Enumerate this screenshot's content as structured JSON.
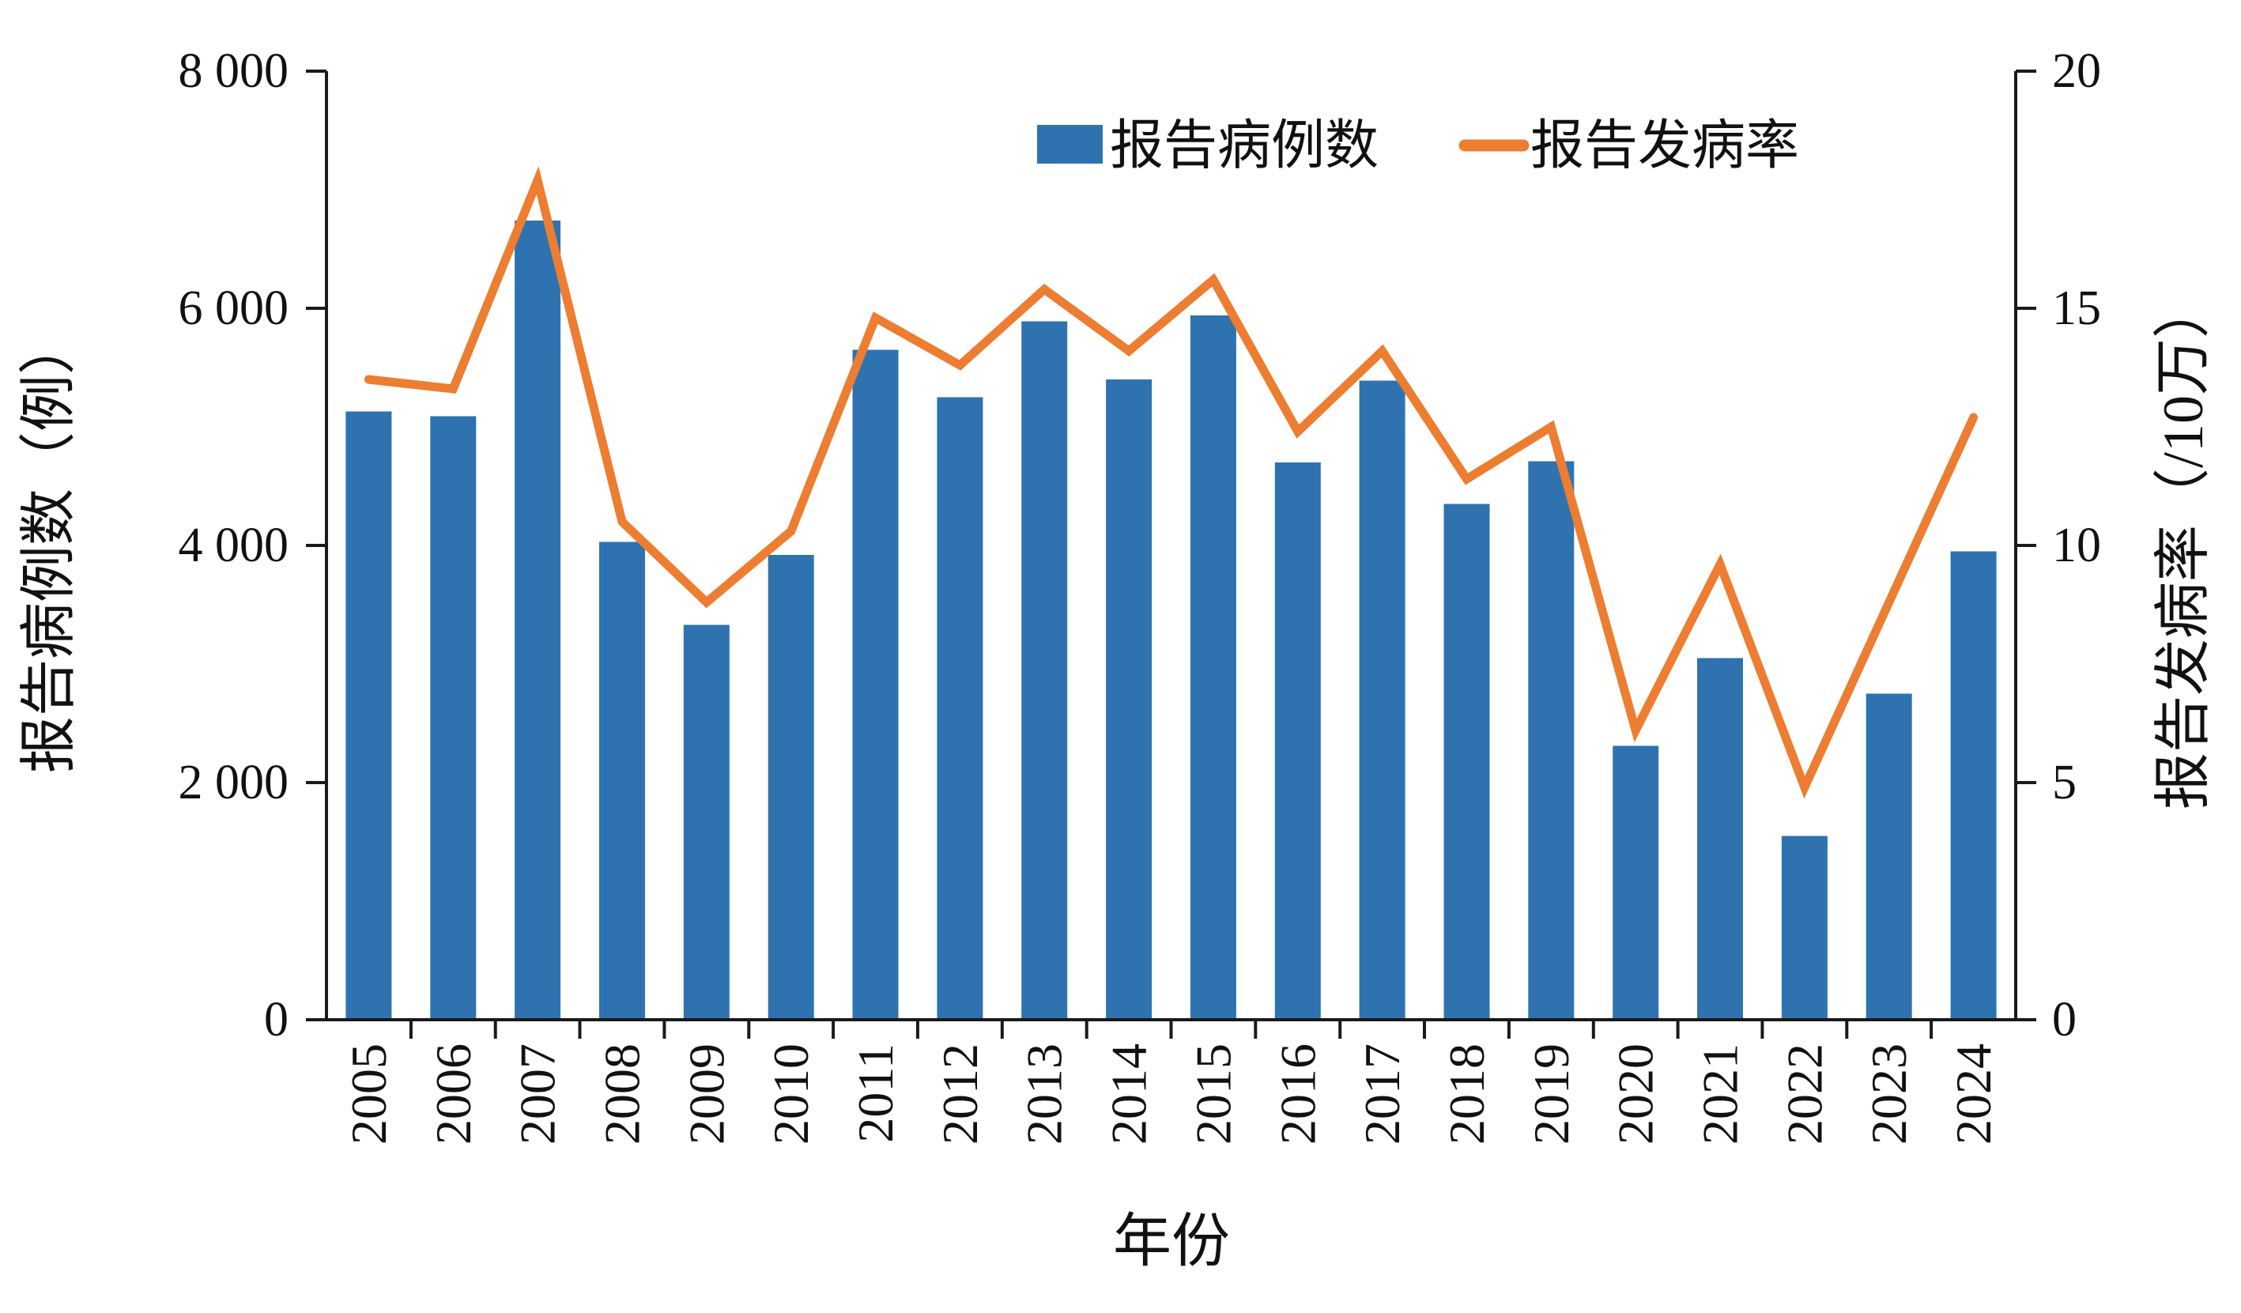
{
  "chart_data": {
    "type": "bar+line",
    "categories": [
      "2005",
      "2006",
      "2007",
      "2008",
      "2009",
      "2010",
      "2011",
      "2012",
      "2013",
      "2014",
      "2015",
      "2016",
      "2017",
      "2018",
      "2019",
      "2020",
      "2021",
      "2022",
      "2023",
      "2024"
    ],
    "series": [
      {
        "name": "报告病例数",
        "type": "bar",
        "axis": "left",
        "values": [
          5130,
          5090,
          6740,
          4030,
          3330,
          3920,
          5650,
          5250,
          5890,
          5400,
          5940,
          4700,
          5390,
          4350,
          4710,
          2310,
          3050,
          1550,
          2750,
          3950
        ]
      },
      {
        "name": "报告发病率",
        "type": "line",
        "axis": "right",
        "values": [
          13.5,
          13.3,
          17.7,
          10.5,
          8.8,
          10.3,
          14.8,
          13.8,
          15.4,
          14.1,
          15.6,
          12.4,
          14.1,
          11.4,
          12.5,
          6.1,
          9.6,
          4.9,
          8.8,
          12.7
        ]
      }
    ],
    "xlabel": "年份",
    "left_axis": {
      "title": "报告病例数（例）",
      "min": 0,
      "max": 8000,
      "tick_values": [
        0,
        2000,
        4000,
        6000,
        8000
      ],
      "tick_labels": [
        "0",
        "2 000",
        "4 000",
        "6 000",
        "8 000"
      ]
    },
    "right_axis": {
      "title": "报告发病率（/10万）",
      "min": 0,
      "max": 20,
      "tick_values": [
        0,
        5,
        10,
        15,
        20
      ],
      "tick_labels": [
        "0",
        "5",
        "10",
        "15",
        "20"
      ]
    },
    "legend": [
      {
        "label": "报告病例数",
        "marker": "bar-swatch"
      },
      {
        "label": "报告发病率",
        "marker": "line-swatch"
      }
    ],
    "grid": false,
    "legend_position": "top-center-inside"
  },
  "colors": {
    "bar": "#2E73B0",
    "line": "#ED7D31",
    "axis": "#1a1a1a",
    "text": "#111111",
    "background": "#ffffff"
  }
}
